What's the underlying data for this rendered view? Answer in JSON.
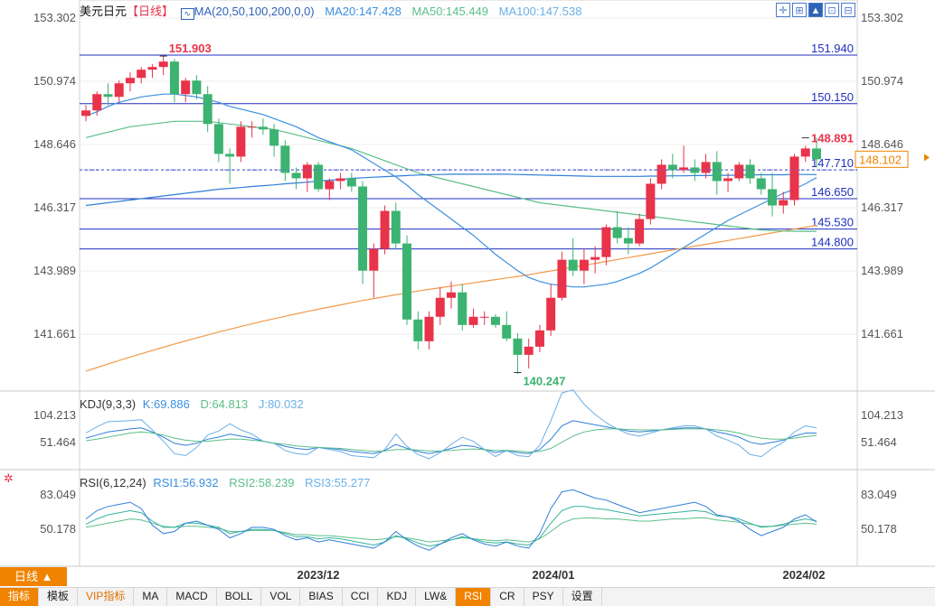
{
  "header": {
    "symbol": "美元日元",
    "period_tag": "【日线】",
    "ma_label": "MA(20,50,100,200,0,0)",
    "ma20": "MA20:147.428",
    "ma50": "MA50:145.449",
    "ma100": "MA100:147.538"
  },
  "kdj": {
    "label": "KDJ(9,3,3)",
    "k": "K:69.886",
    "d": "D:64.813",
    "j": "J:80.032"
  },
  "rsi": {
    "label": "RSI(6,12,24)",
    "r1": "RSI1:56.932",
    "r2": "RSI2:58.239",
    "r3": "RSI3:55.277"
  },
  "toolbar_icons": [
    "crosshair-icon",
    "grid-icon",
    "draw-icon",
    "zoom-icon",
    "expand-icon"
  ],
  "price_axis": [
    "153.302",
    "150.974",
    "148.646",
    "146.317",
    "143.989",
    "141.661"
  ],
  "price_ticks": [
    153.302,
    150.974,
    148.646,
    146.317,
    143.989,
    141.661
  ],
  "kdj_axis": [
    "104.213",
    "51.464"
  ],
  "rsi_axis": [
    "83.049",
    "50.178"
  ],
  "date_labels": [
    "2023/12",
    "2024/01",
    "2024/02"
  ],
  "current_price": "148.102",
  "high_marker": "151.903",
  "low_marker": "140.247",
  "last_high_marker": "148.891",
  "levels": [
    {
      "value": 151.94,
      "label": "151.940"
    },
    {
      "value": 150.15,
      "label": "150.150"
    },
    {
      "value": 147.71,
      "label": "147.710"
    },
    {
      "value": 146.65,
      "label": "146.650"
    },
    {
      "value": 145.53,
      "label": "145.530"
    },
    {
      "value": 144.8,
      "label": "144.800"
    }
  ],
  "period_button": "日线 ▲",
  "bottom_tabs": [
    "指标",
    "模板",
    "VIP指标",
    "MA",
    "MACD",
    "BOLL",
    "VOL",
    "BIAS",
    "CCI",
    "KDJ",
    "LW&",
    "RSI",
    "CR",
    "PSY",
    "设置"
  ],
  "colors": {
    "up": "#e8334a",
    "down": "#3cb371",
    "ma20": "#3b8fe0",
    "ma50": "#5bbf8a",
    "ma100": "#6ab0e8",
    "ma200": "#f29a4a",
    "level": "#1f2fbf",
    "accent": "#f08300"
  },
  "chart_data": {
    "type": "candlestick",
    "ohlc": [
      [
        149.7,
        150.1,
        149.5,
        149.9
      ],
      [
        149.9,
        150.6,
        149.7,
        150.5
      ],
      [
        150.5,
        150.9,
        150.1,
        150.4
      ],
      [
        150.4,
        151.0,
        150.2,
        150.9
      ],
      [
        150.9,
        151.3,
        150.6,
        151.1
      ],
      [
        151.1,
        151.5,
        150.9,
        151.4
      ],
      [
        151.4,
        151.6,
        151.1,
        151.5
      ],
      [
        151.5,
        151.9,
        151.2,
        151.7
      ],
      [
        151.7,
        151.8,
        150.2,
        150.5
      ],
      [
        150.5,
        151.1,
        150.2,
        151.0
      ],
      [
        151.0,
        151.2,
        150.3,
        150.5
      ],
      [
        150.5,
        150.8,
        149.1,
        149.4
      ],
      [
        149.4,
        149.6,
        148.0,
        148.3
      ],
      [
        148.3,
        148.5,
        147.2,
        148.2
      ],
      [
        148.2,
        149.5,
        148.0,
        149.3
      ],
      [
        149.3,
        149.5,
        148.9,
        149.3
      ],
      [
        149.3,
        149.6,
        149.0,
        149.2
      ],
      [
        149.2,
        149.4,
        148.2,
        148.6
      ],
      [
        148.6,
        148.8,
        147.3,
        147.6
      ],
      [
        147.6,
        147.8,
        147.0,
        147.4
      ],
      [
        147.4,
        148.0,
        146.9,
        147.9
      ],
      [
        147.9,
        148.0,
        146.9,
        147.0
      ],
      [
        147.0,
        147.4,
        146.6,
        147.3
      ],
      [
        147.3,
        147.6,
        147.0,
        147.4
      ],
      [
        147.4,
        147.6,
        146.9,
        147.1
      ],
      [
        147.1,
        147.3,
        143.5,
        144.0
      ],
      [
        144.0,
        145.0,
        143.0,
        144.8
      ],
      [
        144.8,
        146.4,
        144.6,
        146.2
      ],
      [
        146.2,
        146.5,
        144.8,
        145.0
      ],
      [
        145.0,
        145.3,
        142.0,
        142.2
      ],
      [
        142.2,
        142.5,
        141.1,
        141.4
      ],
      [
        141.4,
        142.5,
        141.1,
        142.3
      ],
      [
        142.3,
        143.4,
        142.0,
        143.0
      ],
      [
        143.0,
        143.6,
        142.6,
        143.2
      ],
      [
        143.2,
        143.5,
        141.8,
        142.0
      ],
      [
        142.0,
        142.6,
        141.9,
        142.3
      ],
      [
        142.3,
        142.5,
        142.0,
        142.3
      ],
      [
        142.3,
        142.4,
        141.9,
        142.0
      ],
      [
        142.0,
        142.5,
        141.4,
        141.5
      ],
      [
        141.5,
        141.7,
        140.2,
        140.9
      ],
      [
        140.9,
        141.5,
        140.4,
        141.2
      ],
      [
        141.2,
        142.0,
        141.0,
        141.8
      ],
      [
        141.8,
        143.5,
        141.6,
        143.0
      ],
      [
        143.0,
        144.7,
        142.9,
        144.4
      ],
      [
        144.4,
        145.2,
        143.8,
        144.0
      ],
      [
        144.0,
        144.8,
        143.5,
        144.4
      ],
      [
        144.4,
        144.9,
        143.9,
        144.5
      ],
      [
        144.5,
        145.7,
        144.2,
        145.6
      ],
      [
        145.6,
        146.2,
        145.0,
        145.2
      ],
      [
        145.2,
        145.6,
        144.6,
        145.0
      ],
      [
        145.0,
        146.1,
        144.9,
        145.9
      ],
      [
        145.9,
        147.4,
        145.7,
        147.2
      ],
      [
        147.2,
        148.1,
        147.0,
        147.9
      ],
      [
        147.9,
        148.3,
        147.4,
        147.7
      ],
      [
        147.7,
        148.6,
        147.6,
        147.8
      ],
      [
        147.8,
        148.1,
        147.3,
        147.6
      ],
      [
        147.6,
        148.3,
        147.4,
        148.0
      ],
      [
        148.0,
        148.4,
        146.8,
        147.3
      ],
      [
        147.3,
        147.6,
        146.9,
        147.4
      ],
      [
        147.4,
        148.0,
        147.3,
        147.9
      ],
      [
        147.9,
        148.1,
        147.2,
        147.4
      ],
      [
        147.4,
        147.6,
        146.8,
        147.0
      ],
      [
        147.0,
        147.6,
        146.0,
        146.4
      ],
      [
        146.4,
        146.9,
        146.1,
        146.6
      ],
      [
        146.6,
        148.3,
        146.4,
        148.2
      ],
      [
        148.2,
        148.6,
        148.0,
        148.5
      ],
      [
        148.5,
        148.9,
        147.8,
        148.102
      ]
    ],
    "ma20": [
      149.7,
      149.85,
      150.05,
      150.2,
      150.3,
      150.4,
      150.45,
      150.5,
      150.5,
      150.45,
      150.4,
      150.3,
      150.2,
      150.05,
      149.95,
      149.85,
      149.75,
      149.6,
      149.45,
      149.3,
      149.1,
      148.9,
      148.75,
      148.6,
      148.45,
      148.2,
      147.95,
      147.7,
      147.45,
      147.15,
      146.8,
      146.5,
      146.2,
      145.9,
      145.6,
      145.3,
      144.95,
      144.6,
      144.3,
      144.0,
      143.75,
      143.6,
      143.5,
      143.45,
      143.4,
      143.4,
      143.45,
      143.5,
      143.6,
      143.75,
      143.9,
      144.1,
      144.35,
      144.6,
      144.85,
      145.1,
      145.35,
      145.6,
      145.85,
      146.05,
      146.25,
      146.45,
      146.65,
      146.85,
      147.0,
      147.2,
      147.428
    ],
    "ma50": [
      148.9,
      149.0,
      149.1,
      149.2,
      149.3,
      149.35,
      149.4,
      149.45,
      149.5,
      149.5,
      149.5,
      149.5,
      149.45,
      149.4,
      149.35,
      149.3,
      149.25,
      149.2,
      149.1,
      149.0,
      148.9,
      148.8,
      148.7,
      148.6,
      148.5,
      148.35,
      148.2,
      148.05,
      147.9,
      147.75,
      147.6,
      147.5,
      147.4,
      147.3,
      147.2,
      147.1,
      147.0,
      146.9,
      146.8,
      146.7,
      146.6,
      146.5,
      146.45,
      146.4,
      146.35,
      146.3,
      146.25,
      146.2,
      146.15,
      146.1,
      146.05,
      146.0,
      145.95,
      145.9,
      145.85,
      145.8,
      145.75,
      145.7,
      145.65,
      145.6,
      145.55,
      145.5,
      145.48,
      145.46,
      145.45,
      145.45,
      145.449
    ],
    "ma100": [
      146.4,
      146.45,
      146.5,
      146.55,
      146.6,
      146.65,
      146.7,
      146.75,
      146.8,
      146.85,
      146.9,
      146.95,
      147.0,
      147.03,
      147.06,
      147.1,
      147.13,
      147.16,
      147.2,
      147.23,
      147.26,
      147.3,
      147.33,
      147.36,
      147.4,
      147.42,
      147.44,
      147.46,
      147.48,
      147.5,
      147.52,
      147.53,
      147.54,
      147.55,
      147.55,
      147.55,
      147.55,
      147.55,
      147.55,
      147.54,
      147.53,
      147.52,
      147.51,
      147.5,
      147.49,
      147.48,
      147.47,
      147.47,
      147.47,
      147.47,
      147.47,
      147.48,
      147.48,
      147.49,
      147.49,
      147.5,
      147.5,
      147.51,
      147.51,
      147.52,
      147.52,
      147.53,
      147.53,
      147.53,
      147.54,
      147.54,
      147.538
    ],
    "ma200": [
      140.3,
      140.43,
      140.56,
      140.69,
      140.82,
      140.94,
      141.06,
      141.18,
      141.3,
      141.41,
      141.52,
      141.63,
      141.74,
      141.84,
      141.94,
      142.04,
      142.14,
      142.23,
      142.32,
      142.41,
      142.5,
      142.58,
      142.66,
      142.74,
      142.82,
      142.9,
      142.97,
      143.04,
      143.11,
      143.18,
      143.25,
      143.31,
      143.37,
      143.43,
      143.49,
      143.55,
      143.61,
      143.67,
      143.73,
      143.79,
      143.85,
      143.92,
      143.99,
      144.06,
      144.13,
      144.2,
      144.27,
      144.34,
      144.41,
      144.48,
      144.55,
      144.62,
      144.69,
      144.76,
      144.83,
      144.9,
      144.97,
      145.04,
      145.11,
      145.18,
      145.25,
      145.32,
      145.39,
      145.46,
      145.53,
      145.6,
      145.67
    ],
    "kdj_k": [
      60,
      66,
      72,
      75,
      78,
      80,
      72,
      62,
      50,
      46,
      50,
      58,
      62,
      68,
      64,
      60,
      54,
      50,
      44,
      40,
      38,
      42,
      40,
      38,
      34,
      32,
      30,
      36,
      48,
      40,
      34,
      30,
      34,
      40,
      46,
      44,
      38,
      32,
      36,
      32,
      30,
      38,
      58,
      84,
      94,
      90,
      86,
      82,
      78,
      74,
      72,
      74,
      76,
      78,
      80,
      80,
      78,
      72,
      68,
      62,
      52,
      48,
      52,
      56,
      64,
      70,
      70
    ],
    "kdj_d": [
      55,
      58,
      62,
      66,
      70,
      72,
      70,
      66,
      60,
      56,
      54,
      54,
      56,
      58,
      58,
      56,
      54,
      50,
      48,
      45,
      43,
      42,
      41,
      40,
      38,
      36,
      34,
      35,
      38,
      38,
      37,
      35,
      35,
      36,
      38,
      39,
      38,
      36,
      36,
      35,
      33,
      34,
      40,
      52,
      64,
      72,
      76,
      78,
      78,
      77,
      76,
      76,
      76,
      77,
      78,
      78,
      78,
      76,
      74,
      70,
      64,
      60,
      58,
      58,
      60,
      63,
      65
    ],
    "kdj_j": [
      70,
      82,
      92,
      93,
      94,
      96,
      76,
      54,
      30,
      26,
      42,
      66,
      74,
      88,
      76,
      68,
      54,
      50,
      36,
      30,
      28,
      42,
      38,
      34,
      26,
      24,
      22,
      38,
      68,
      44,
      28,
      20,
      32,
      48,
      62,
      54,
      38,
      24,
      36,
      26,
      24,
      46,
      94,
      148,
      154,
      126,
      106,
      90,
      78,
      68,
      64,
      70,
      76,
      80,
      84,
      84,
      78,
      64,
      56,
      46,
      28,
      24,
      40,
      52,
      72,
      84,
      80
    ],
    "rsi1": [
      60,
      68,
      72,
      74,
      76,
      70,
      54,
      46,
      48,
      56,
      58,
      54,
      50,
      42,
      46,
      52,
      52,
      50,
      44,
      40,
      42,
      38,
      40,
      38,
      36,
      34,
      32,
      38,
      48,
      40,
      34,
      30,
      36,
      42,
      46,
      40,
      36,
      34,
      38,
      34,
      32,
      46,
      70,
      86,
      88,
      84,
      80,
      78,
      74,
      70,
      66,
      68,
      70,
      72,
      74,
      76,
      72,
      64,
      62,
      58,
      50,
      44,
      48,
      52,
      60,
      64,
      57
    ],
    "rsi2": [
      55,
      60,
      64,
      66,
      68,
      66,
      58,
      52,
      52,
      56,
      56,
      54,
      52,
      46,
      48,
      50,
      50,
      49,
      46,
      43,
      43,
      41,
      42,
      41,
      39,
      37,
      35,
      38,
      44,
      41,
      37,
      34,
      36,
      40,
      43,
      41,
      38,
      37,
      38,
      36,
      35,
      42,
      56,
      68,
      72,
      72,
      70,
      69,
      67,
      65,
      63,
      64,
      65,
      66,
      67,
      68,
      67,
      63,
      62,
      60,
      56,
      52,
      53,
      55,
      58,
      60,
      58
    ],
    "rsi3": [
      52,
      54,
      56,
      58,
      60,
      59,
      56,
      53,
      52,
      53,
      53,
      52,
      51,
      48,
      48,
      49,
      49,
      49,
      47,
      45,
      45,
      44,
      44,
      43,
      42,
      41,
      40,
      41,
      43,
      42,
      40,
      38,
      39,
      40,
      42,
      41,
      40,
      39,
      40,
      39,
      38,
      41,
      48,
      56,
      60,
      61,
      61,
      60,
      60,
      59,
      58,
      58,
      59,
      60,
      60,
      61,
      61,
      59,
      58,
      57,
      55,
      53,
      53,
      54,
      55,
      56,
      55
    ]
  }
}
